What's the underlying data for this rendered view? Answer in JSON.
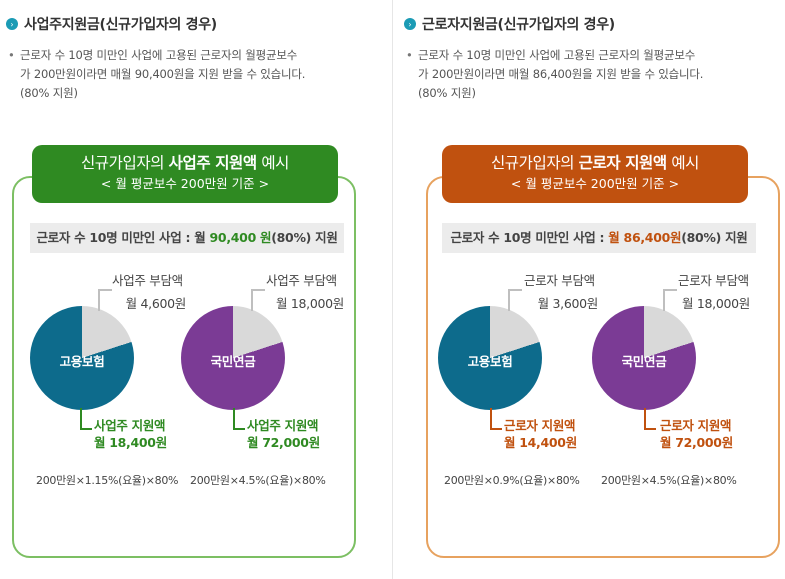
{
  "colors": {
    "left_accent": "#2f8a22",
    "right_accent": "#c0510f",
    "pie_teal": "#0d6b8c",
    "pie_purple": "#7b3b95",
    "pie_gray": "#d9d9d9",
    "bullet": "#1b9bb5"
  },
  "left": {
    "heading": "사업주지원금(신규가입자의 경우)",
    "desc": [
      "근로자 수 10명 미만인 사업에 고용된 근로자의 월평균보수",
      "가 200만원이라면 매월 90,400원을 지원 받을 수 있습니다.",
      "(80% 지원)"
    ],
    "banner_pre": "신규가입자의 ",
    "banner_strong": "사업주 지원액",
    "banner_post": " 예시",
    "banner_sub": "< 월 평균보수 200만원 기준 >",
    "bar_pre": "근로자 수 10명 미만인 사업 : ",
    "bar_amount_label": "월 ",
    "bar_amount": "90,400 원",
    "bar_post": "(80%) 지원",
    "pie1": {
      "label": "고용보험",
      "burden_title": "사업주 부담액",
      "burden_value": "월 4,600원",
      "support_title": "사업주 지원액",
      "support_value": "월 18,400원",
      "formula": "200만원×1.15%(요율)×80%",
      "support_fraction": 0.8
    },
    "pie2": {
      "label": "국민연금",
      "burden_title": "사업주 부담액",
      "burden_value": "월 18,000원",
      "support_title": "사업주 지원액",
      "support_value": "월 72,000원",
      "formula": "200만원×4.5%(요율)×80%",
      "support_fraction": 0.8
    }
  },
  "right": {
    "heading": "근로자지원금(신규가입자의 경우)",
    "desc": [
      "근로자 수 10명 미만인 사업에 고용된 근로자의 월평균보수",
      "가 200만원이라면 매월 86,400원을 지원 받을 수 있습니다.",
      "(80% 지원)"
    ],
    "banner_pre": "신규가입자의 ",
    "banner_strong": "근로자 지원액",
    "banner_post": " 예시",
    "banner_sub": "< 월 평균보수 200만원 기준 >",
    "bar_pre": "근로자 수 10명 미만인 사업 : ",
    "bar_amount_label": "",
    "bar_amount": "월 86,400원",
    "bar_post": "(80%) 지원",
    "pie1": {
      "label": "고용보험",
      "burden_title": "근로자 부담액",
      "burden_value": "월 3,600원",
      "support_title": "근로자 지원액",
      "support_value": "월 14,400원",
      "formula": "200만원×0.9%(요율)×80%",
      "support_fraction": 0.8
    },
    "pie2": {
      "label": "국민연금",
      "burden_title": "근로자 부담액",
      "burden_value": "월 18,000원",
      "support_title": "근로자 지원액",
      "support_value": "월 72,000원",
      "formula": "200만원×4.5%(요율)×80%",
      "support_fraction": 0.8
    }
  }
}
